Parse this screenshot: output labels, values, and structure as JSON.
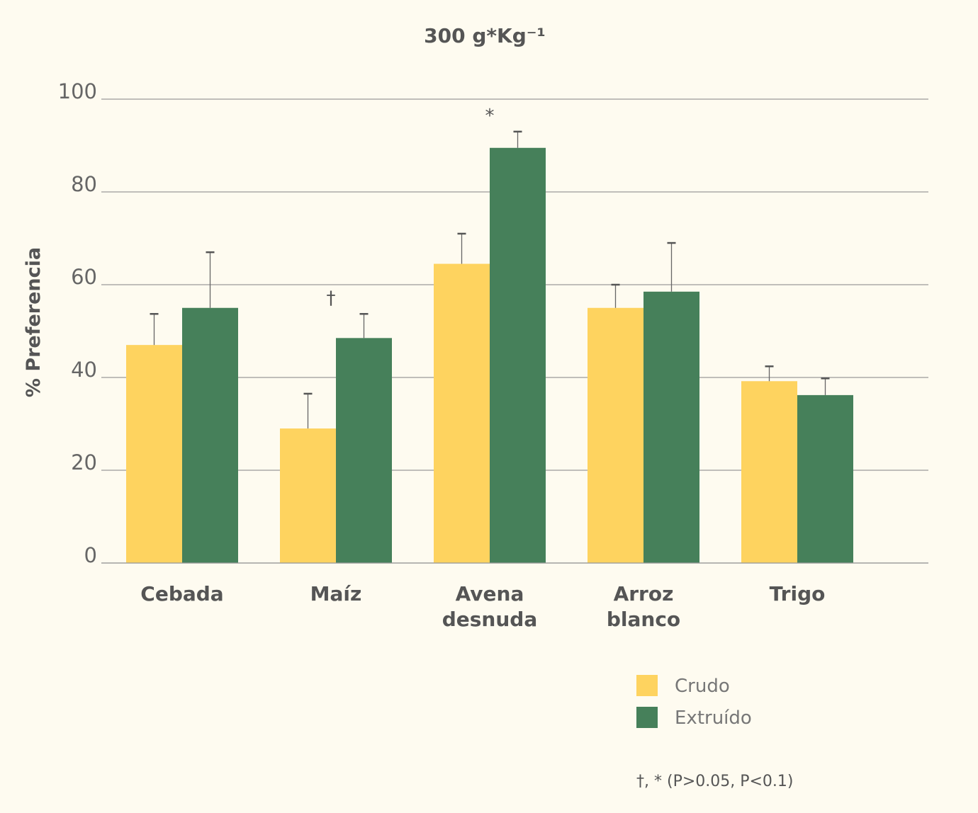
{
  "chart_data": {
    "type": "bar",
    "title": "300 g*Kg⁻¹",
    "y_label": "% Preferencia",
    "categories": [
      "Cebada",
      "Maíz",
      "Avena\ndesnuda",
      "Arroz\nblanco",
      "Trigo"
    ],
    "series": [
      {
        "name": "Crudo",
        "color": "#fed35f",
        "values": [
          47,
          29,
          64.5,
          55,
          39.2
        ],
        "errors": [
          6.7,
          7.5,
          6.5,
          5,
          3.2
        ]
      },
      {
        "name": "Extruído",
        "color": "#46805a",
        "values": [
          55,
          48.5,
          89.5,
          58.5,
          36.2
        ],
        "errors": [
          12,
          5.2,
          3.5,
          10.5,
          3.6
        ]
      }
    ],
    "annotations": [
      {
        "text": "†",
        "category": 1
      },
      {
        "text": "*",
        "category": 2
      }
    ],
    "footnote": "†, * (P>0.05, P<0.1)",
    "ylim": [
      0,
      100
    ],
    "yticks": [
      0,
      20,
      40,
      60,
      80,
      100
    ],
    "grid": true
  }
}
